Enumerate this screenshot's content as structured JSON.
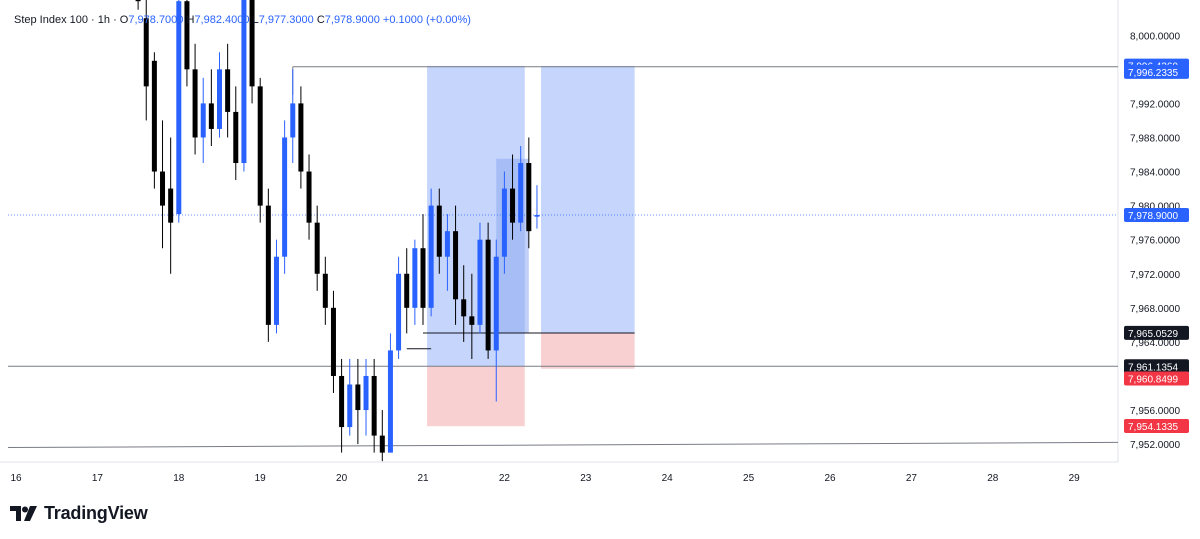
{
  "header": {
    "symbol": "Step Index 100 · 1h ·",
    "o_label": "O",
    "o_value": "7,978.7000",
    "h_label": "H",
    "h_value": "7,982.4000",
    "l_label": "L",
    "l_value": "7,977.3000",
    "c_label": "C",
    "c_value": "7,978.9000",
    "change": "+0.1000 (+0.00%)"
  },
  "brand": {
    "name": "TradingView"
  },
  "colors": {
    "up": "#2962ff",
    "down": "#000000",
    "profit_zone": "#c5d5fb",
    "loss_zone": "#f8d0d2",
    "tag_red": "#f23645",
    "tag_blue": "#2962ff",
    "tag_dark": "#131722",
    "line": "#787b86"
  },
  "chart_data": {
    "type": "candlestick",
    "title": "Step Index 100 · 1h",
    "xlabel": "",
    "ylabel": "",
    "ylim": [
      7949.9,
      8003.2
    ],
    "y_ticks": [
      8000,
      7996,
      7992,
      7988,
      7984,
      7980,
      7976,
      7972,
      7968,
      7964,
      7960,
      7956,
      7952
    ],
    "y_tick_labels": [
      "8,000.0000",
      "7,996.0000",
      "7,992.0000",
      "7,988.0000",
      "7,984.0000",
      "7,980.0000",
      "7,976.0000",
      "7,972.0000",
      "7,968.0000",
      "7,964.0000",
      "7,960.0000",
      "7,956.0000",
      "7,952.0000"
    ],
    "x_ticks": [
      "16",
      "17",
      "18",
      "19",
      "20",
      "21",
      "22",
      "23",
      "24",
      "25",
      "26",
      "27",
      "28",
      "29"
    ],
    "current_price": 7978.9,
    "candles": [
      {
        "day": 17.5,
        "o": 8008,
        "h": 8009,
        "l": 8003,
        "c": 8004
      },
      {
        "day": 17.6,
        "o": 8002,
        "h": 8005,
        "l": 7990,
        "c": 7994
      },
      {
        "day": 17.7,
        "o": 7997,
        "h": 7998,
        "l": 7982,
        "c": 7984
      },
      {
        "day": 17.8,
        "o": 7984,
        "h": 7990,
        "l": 7975,
        "c": 7980
      },
      {
        "day": 17.9,
        "o": 7982,
        "h": 7988,
        "l": 7972,
        "c": 7978
      },
      {
        "day": 18.0,
        "o": 7979,
        "h": 8006,
        "l": 7978,
        "c": 8004
      },
      {
        "day": 18.1,
        "o": 8004,
        "h": 8006,
        "l": 7994,
        "c": 7996
      },
      {
        "day": 18.2,
        "o": 7996,
        "h": 7999,
        "l": 7986,
        "c": 7988
      },
      {
        "day": 18.3,
        "o": 7988,
        "h": 7995,
        "l": 7985,
        "c": 7992
      },
      {
        "day": 18.4,
        "o": 7992,
        "h": 7996,
        "l": 7987,
        "c": 7989
      },
      {
        "day": 18.5,
        "o": 7989,
        "h": 7998,
        "l": 7988,
        "c": 7996
      },
      {
        "day": 18.6,
        "o": 7996,
        "h": 7999,
        "l": 7988,
        "c": 7991
      },
      {
        "day": 18.7,
        "o": 7991,
        "h": 7994,
        "l": 7983,
        "c": 7985
      },
      {
        "day": 18.8,
        "o": 7985,
        "h": 8008,
        "l": 7984,
        "c": 8005
      },
      {
        "day": 18.9,
        "o": 8005,
        "h": 8008,
        "l": 7992,
        "c": 7994
      },
      {
        "day": 19.0,
        "o": 7994,
        "h": 7995,
        "l": 7978,
        "c": 7980
      },
      {
        "day": 19.1,
        "o": 7980,
        "h": 7982,
        "l": 7964,
        "c": 7966
      },
      {
        "day": 19.2,
        "o": 7966,
        "h": 7976,
        "l": 7965,
        "c": 7974
      },
      {
        "day": 19.3,
        "o": 7974,
        "h": 7990,
        "l": 7972,
        "c": 7988
      },
      {
        "day": 19.4,
        "o": 7988,
        "h": 7996,
        "l": 7985,
        "c": 7992
      },
      {
        "day": 19.5,
        "o": 7992,
        "h": 7994,
        "l": 7982,
        "c": 7984
      },
      {
        "day": 19.6,
        "o": 7984,
        "h": 7986,
        "l": 7976,
        "c": 7978
      },
      {
        "day": 19.7,
        "o": 7978,
        "h": 7980,
        "l": 7970,
        "c": 7972
      },
      {
        "day": 19.8,
        "o": 7972,
        "h": 7974,
        "l": 7966,
        "c": 7968
      },
      {
        "day": 19.9,
        "o": 7968,
        "h": 7970,
        "l": 7958,
        "c": 7960
      },
      {
        "day": 20.0,
        "o": 7960,
        "h": 7962,
        "l": 7951,
        "c": 7954
      },
      {
        "day": 20.1,
        "o": 7954,
        "h": 7962,
        "l": 7953,
        "c": 7959
      },
      {
        "day": 20.2,
        "o": 7959,
        "h": 7962,
        "l": 7952,
        "c": 7956
      },
      {
        "day": 20.3,
        "o": 7956,
        "h": 7962,
        "l": 7953,
        "c": 7960
      },
      {
        "day": 20.4,
        "o": 7960,
        "h": 7962,
        "l": 7951,
        "c": 7953
      },
      {
        "day": 20.5,
        "o": 7953,
        "h": 7956,
        "l": 7950,
        "c": 7951
      },
      {
        "day": 20.6,
        "o": 7951,
        "h": 7965,
        "l": 7951,
        "c": 7963
      },
      {
        "day": 20.7,
        "o": 7963,
        "h": 7974,
        "l": 7962,
        "c": 7972
      },
      {
        "day": 20.8,
        "o": 7972,
        "h": 7975,
        "l": 7965,
        "c": 7968
      },
      {
        "day": 20.9,
        "o": 7968,
        "h": 7976,
        "l": 7966,
        "c": 7975
      },
      {
        "day": 21.0,
        "o": 7975,
        "h": 7979,
        "l": 7966,
        "c": 7968
      },
      {
        "day": 21.1,
        "o": 7968,
        "h": 7982,
        "l": 7967,
        "c": 7980
      },
      {
        "day": 21.2,
        "o": 7980,
        "h": 7982,
        "l": 7972,
        "c": 7974
      },
      {
        "day": 21.3,
        "o": 7974,
        "h": 7979,
        "l": 7970,
        "c": 7977
      },
      {
        "day": 21.4,
        "o": 7977,
        "h": 7980,
        "l": 7966,
        "c": 7969
      },
      {
        "day": 21.5,
        "o": 7969,
        "h": 7973,
        "l": 7964,
        "c": 7967
      },
      {
        "day": 21.6,
        "o": 7967,
        "h": 7972,
        "l": 7962,
        "c": 7966
      },
      {
        "day": 21.7,
        "o": 7966,
        "h": 7978,
        "l": 7965,
        "c": 7976
      },
      {
        "day": 21.8,
        "o": 7976,
        "h": 7978,
        "l": 7962,
        "c": 7963
      },
      {
        "day": 21.9,
        "o": 7963,
        "h": 7976,
        "l": 7957,
        "c": 7974
      },
      {
        "day": 22.0,
        "o": 7974,
        "h": 7984,
        "l": 7972,
        "c": 7982
      },
      {
        "day": 22.1,
        "o": 7982,
        "h": 7986,
        "l": 7976,
        "c": 7978
      },
      {
        "day": 22.2,
        "o": 7978,
        "h": 7987,
        "l": 7977,
        "c": 7985
      },
      {
        "day": 22.3,
        "o": 7985,
        "h": 7988,
        "l": 7975,
        "c": 7977
      },
      {
        "day": 22.4,
        "o": 7978.7,
        "h": 7982.4,
        "l": 7977.3,
        "c": 7978.9
      }
    ],
    "levels": [
      {
        "price": 7996.4369,
        "label": "7,996.4369",
        "from": 19.4,
        "color": "#2962ff"
      },
      {
        "price": 7996.2335,
        "label": "7,996.2335",
        "from": 19.4,
        "color": "#2962ff"
      },
      {
        "price": 7965.0529,
        "label": "7,965.0529",
        "from": 21.0,
        "color": "#131722"
      },
      {
        "price": 7961.1354,
        "label": "7,961.1354",
        "from": 15.8,
        "color": "#131722"
      },
      {
        "price": 7960.8499,
        "label": "7,960.8499",
        "from": null,
        "color": "#f23645"
      },
      {
        "price": 7954.1335,
        "label": "7,954.1335",
        "from": null,
        "color": "#f23645"
      }
    ],
    "trend_line_price": 7952.0,
    "position_boxes": [
      {
        "from": 21.05,
        "to": 22.25,
        "entry": 7961.1,
        "target": 7996.4,
        "stop": 7954.1
      },
      {
        "from": 22.45,
        "to": 23.6,
        "entry": 7965.05,
        "target": 7996.4,
        "stop": 7960.85
      }
    ]
  }
}
